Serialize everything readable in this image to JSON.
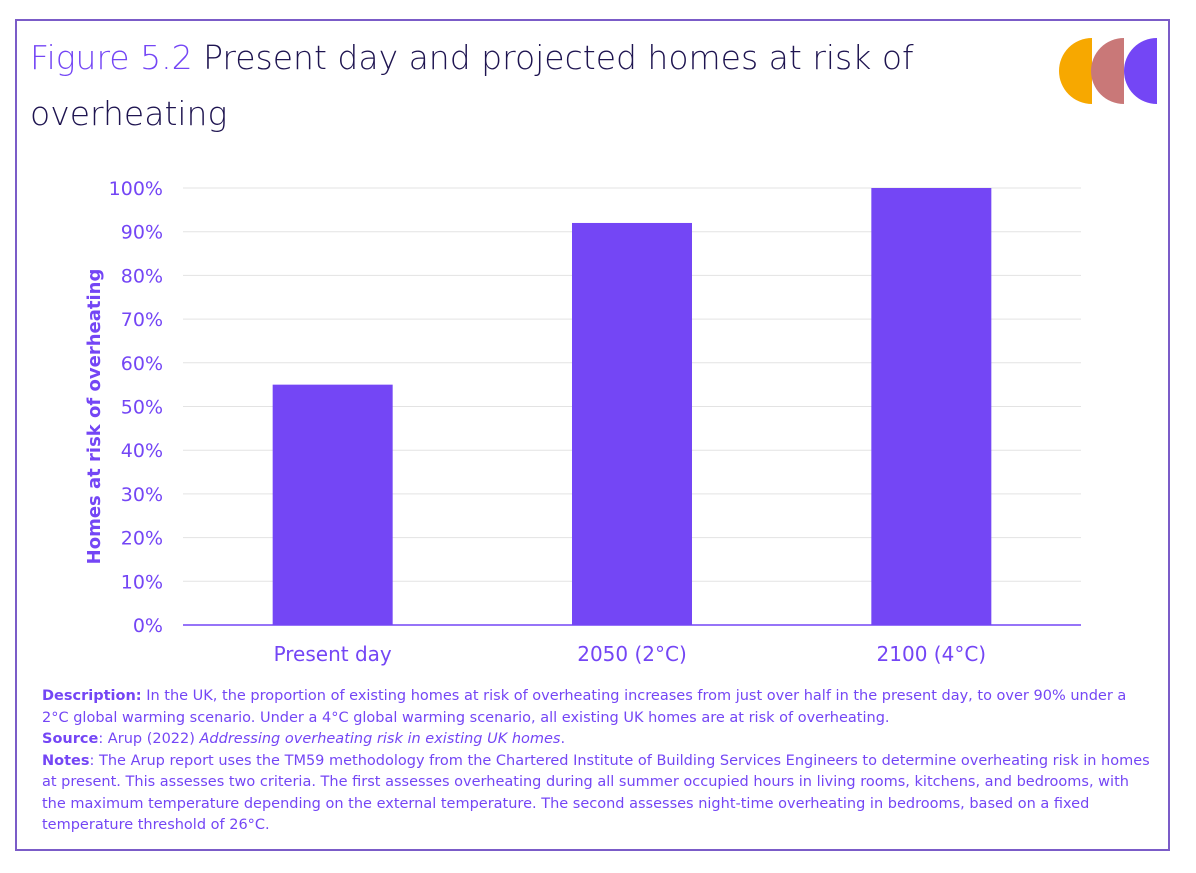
{
  "title": {
    "figure_label": "Figure 5.2",
    "text": "Present day and projected homes at risk of overheating"
  },
  "colors": {
    "accent": "#7446f5",
    "title_text": "#1e1450",
    "logo_orange": "#f7a800",
    "logo_rose": "#c97878",
    "logo_violet": "#7446f5",
    "frame": "#7b5cc8"
  },
  "chart_data": {
    "type": "bar",
    "categories": [
      "Present day",
      "2050 (2°C)",
      "2100 (4°C)"
    ],
    "values": [
      55,
      92,
      100
    ],
    "ylabel": "Homes at risk of overheating",
    "ylim": [
      0,
      100
    ],
    "yticks": [
      "0%",
      "10%",
      "20%",
      "30%",
      "40%",
      "50%",
      "60%",
      "70%",
      "80%",
      "90%",
      "100%"
    ],
    "grid": true,
    "bar_color": "#7446f5"
  },
  "notes": {
    "description_label": "Description:",
    "description_text": "In the UK, the proportion of existing homes at risk of overheating increases from just over half in the present day, to over 90% under a 2°C global warming scenario. Under a 4°C global warming scenario, all existing UK homes are at risk of overheating.",
    "source_label": "Source",
    "source_prefix": ": Arup (2022) ",
    "source_title": "Addressing overheating risk in existing UK homes",
    "source_suffix": ".",
    "notes_label": "Notes",
    "notes_text": ": The Arup report uses the TM59 methodology from the Chartered Institute of Building Services Engineers to determine overheating risk in homes at present. This assesses two criteria. The first assesses overheating during all summer occupied hours in living rooms, kitchens, and bedrooms, with the maximum temperature depending on the external temperature. The second assesses night-time overheating in bedrooms, based on a fixed temperature threshold of 26°C."
  }
}
